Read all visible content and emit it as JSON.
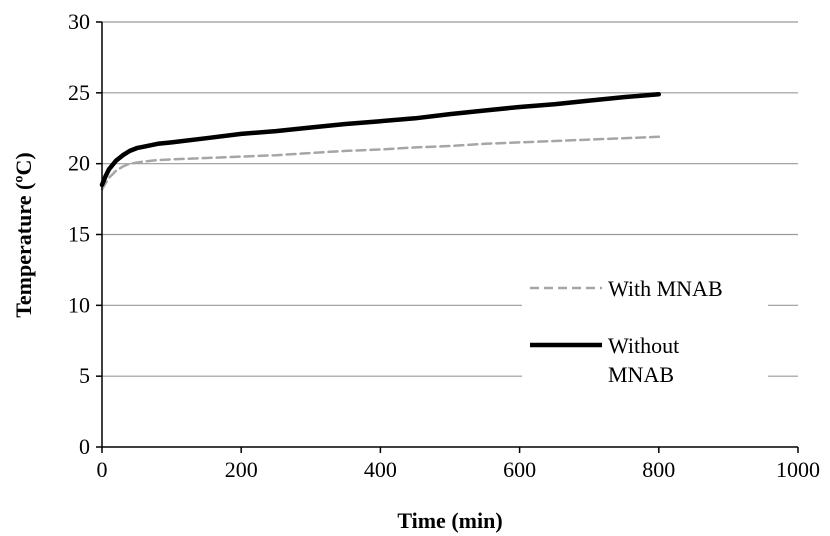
{
  "chart_data": {
    "type": "line",
    "title": "",
    "xlabel": "Time (min)",
    "ylabel": "Temperature (ºC)",
    "xlim": [
      0,
      1000
    ],
    "ylim": [
      0,
      30
    ],
    "x_ticks": [
      0,
      200,
      400,
      600,
      800,
      1000
    ],
    "y_ticks": [
      0,
      5,
      10,
      15,
      20,
      25,
      30
    ],
    "grid": "horizontal",
    "legend_position": "bottom-right",
    "series": [
      {
        "name": "With MNAB",
        "color": "#a6a6a6",
        "style": "dashed",
        "x": [
          0,
          5,
          10,
          20,
          30,
          40,
          60,
          80,
          100,
          150,
          200,
          250,
          300,
          350,
          400,
          450,
          500,
          550,
          600,
          650,
          700,
          750,
          800
        ],
        "y": [
          18.2,
          18.6,
          19.0,
          19.5,
          19.8,
          20.0,
          20.15,
          20.25,
          20.3,
          20.4,
          20.5,
          20.6,
          20.75,
          20.9,
          21.0,
          21.15,
          21.25,
          21.4,
          21.5,
          21.6,
          21.7,
          21.8,
          21.9
        ]
      },
      {
        "name": "Without MNAB",
        "color": "#000000",
        "style": "solid",
        "x": [
          0,
          5,
          10,
          20,
          30,
          40,
          50,
          60,
          80,
          100,
          150,
          200,
          250,
          300,
          350,
          400,
          450,
          500,
          550,
          600,
          650,
          700,
          750,
          800
        ],
        "y": [
          18.5,
          19.1,
          19.6,
          20.2,
          20.6,
          20.9,
          21.1,
          21.2,
          21.4,
          21.5,
          21.8,
          22.1,
          22.3,
          22.55,
          22.8,
          23.0,
          23.2,
          23.5,
          23.75,
          24.0,
          24.2,
          24.45,
          24.7,
          24.9
        ]
      }
    ],
    "legend": {
      "entries": [
        {
          "label_lines": [
            "With MNAB"
          ]
        },
        {
          "label_lines": [
            "Without",
            "MNAB"
          ]
        }
      ]
    }
  }
}
